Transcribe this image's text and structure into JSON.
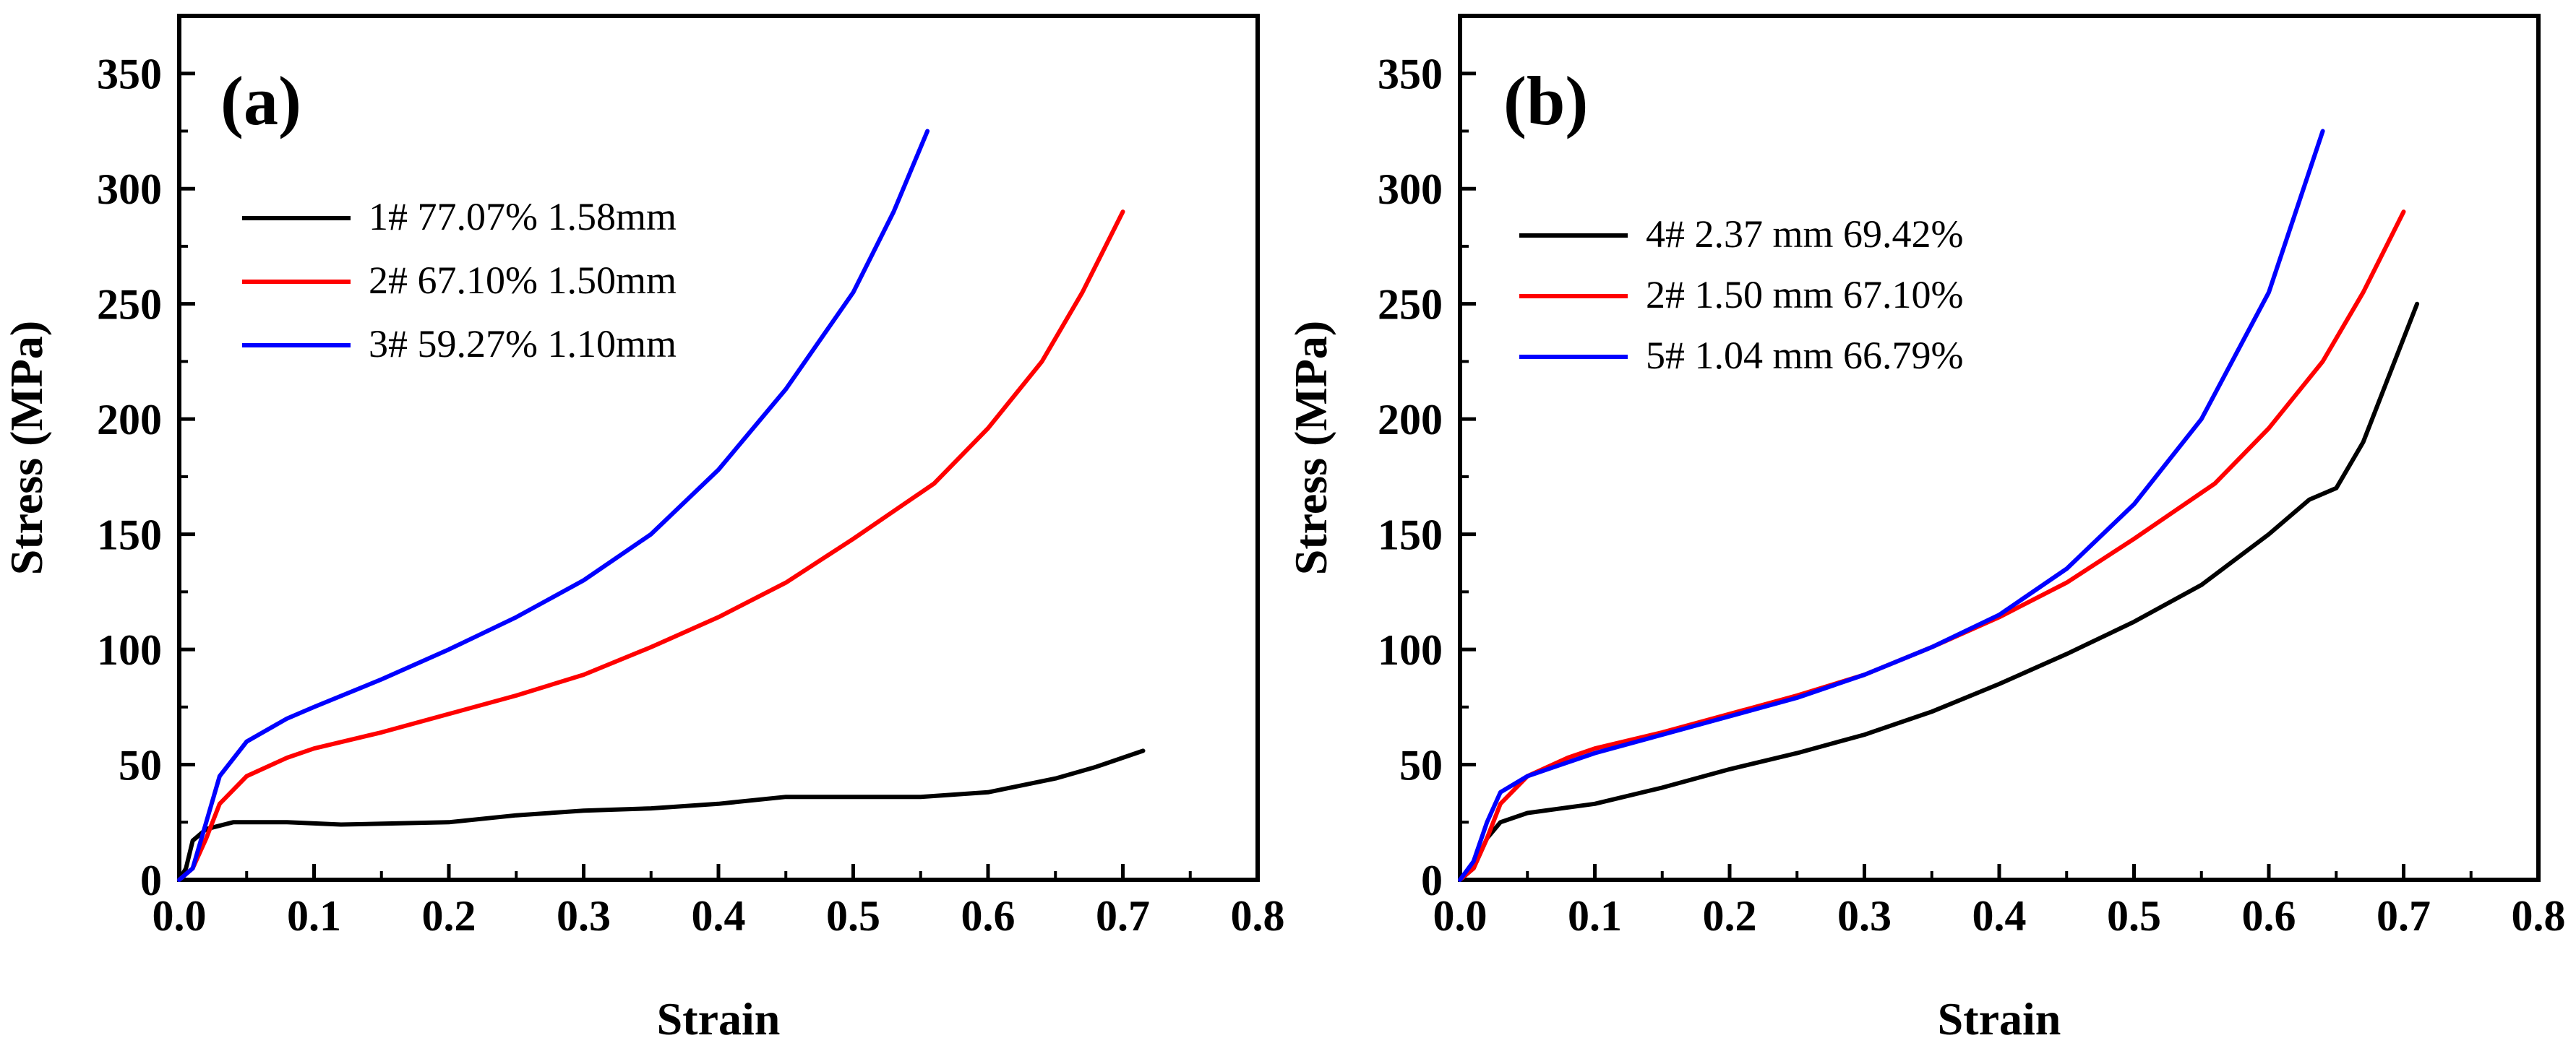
{
  "chart_data": [
    {
      "type": "line",
      "panel_label": "(a)",
      "xlabel": "Strain",
      "ylabel": "Stress (MPa)",
      "xlim": [
        0.0,
        0.8
      ],
      "ylim": [
        0,
        375
      ],
      "xticks": [
        "0.0",
        "0.1",
        "0.2",
        "0.3",
        "0.4",
        "0.5",
        "0.6",
        "0.7",
        "0.8"
      ],
      "yticks": [
        "0",
        "50",
        "100",
        "150",
        "200",
        "250",
        "300",
        "350"
      ],
      "grid": false,
      "legend_position": "upper-left",
      "series": [
        {
          "name": "1# 77.07% 1.58mm",
          "color": "#000000",
          "points": [
            [
              0,
              0
            ],
            [
              0.005,
              5
            ],
            [
              0.01,
              17
            ],
            [
              0.02,
              22
            ],
            [
              0.04,
              25
            ],
            [
              0.08,
              25
            ],
            [
              0.12,
              24
            ],
            [
              0.2,
              25
            ],
            [
              0.25,
              28
            ],
            [
              0.3,
              30
            ],
            [
              0.35,
              31
            ],
            [
              0.4,
              33
            ],
            [
              0.45,
              36
            ],
            [
              0.5,
              36
            ],
            [
              0.55,
              36
            ],
            [
              0.6,
              38
            ],
            [
              0.65,
              44
            ],
            [
              0.68,
              49
            ],
            [
              0.715,
              56
            ]
          ]
        },
        {
          "name": "2# 67.10% 1.50mm",
          "color": "#ff0000",
          "points": [
            [
              0,
              0
            ],
            [
              0.01,
              5
            ],
            [
              0.02,
              18
            ],
            [
              0.03,
              33
            ],
            [
              0.05,
              45
            ],
            [
              0.08,
              53
            ],
            [
              0.1,
              57
            ],
            [
              0.15,
              64
            ],
            [
              0.2,
              72
            ],
            [
              0.25,
              80
            ],
            [
              0.3,
              89
            ],
            [
              0.35,
              101
            ],
            [
              0.4,
              114
            ],
            [
              0.45,
              129
            ],
            [
              0.5,
              148
            ],
            [
              0.53,
              160
            ],
            [
              0.56,
              172
            ],
            [
              0.6,
              196
            ],
            [
              0.64,
              225
            ],
            [
              0.67,
              255
            ],
            [
              0.7,
              290
            ]
          ]
        },
        {
          "name": "3# 59.27% 1.10mm",
          "color": "#0000ff",
          "points": [
            [
              0,
              0
            ],
            [
              0.01,
              5
            ],
            [
              0.02,
              25
            ],
            [
              0.03,
              45
            ],
            [
              0.05,
              60
            ],
            [
              0.08,
              70
            ],
            [
              0.1,
              75
            ],
            [
              0.15,
              87
            ],
            [
              0.2,
              100
            ],
            [
              0.25,
              114
            ],
            [
              0.3,
              130
            ],
            [
              0.35,
              150
            ],
            [
              0.4,
              178
            ],
            [
              0.45,
              213
            ],
            [
              0.5,
              255
            ],
            [
              0.53,
              290
            ],
            [
              0.555,
              325
            ]
          ]
        }
      ]
    },
    {
      "type": "line",
      "panel_label": "(b)",
      "xlabel": "Strain",
      "ylabel": "Stress (MPa)",
      "xlim": [
        0.0,
        0.8
      ],
      "ylim": [
        0,
        375
      ],
      "xticks": [
        "0.0",
        "0.1",
        "0.2",
        "0.3",
        "0.4",
        "0.5",
        "0.6",
        "0.7",
        "0.8"
      ],
      "yticks": [
        "0",
        "50",
        "100",
        "150",
        "200",
        "250",
        "300",
        "350"
      ],
      "grid": false,
      "legend_position": "upper-left",
      "series": [
        {
          "name": "4# 2.37 mm 69.42%",
          "color": "#000000",
          "points": [
            [
              0,
              0
            ],
            [
              0.01,
              5
            ],
            [
              0.02,
              18
            ],
            [
              0.03,
              25
            ],
            [
              0.05,
              29
            ],
            [
              0.1,
              33
            ],
            [
              0.15,
              40
            ],
            [
              0.2,
              48
            ],
            [
              0.25,
              55
            ],
            [
              0.3,
              63
            ],
            [
              0.35,
              73
            ],
            [
              0.4,
              85
            ],
            [
              0.45,
              98
            ],
            [
              0.5,
              112
            ],
            [
              0.55,
              128
            ],
            [
              0.6,
              150
            ],
            [
              0.63,
              165
            ],
            [
              0.65,
              170
            ],
            [
              0.67,
              190
            ],
            [
              0.69,
              220
            ],
            [
              0.71,
              250
            ]
          ]
        },
        {
          "name": "2# 1.50 mm 67.10%",
          "color": "#ff0000",
          "points": [
            [
              0,
              0
            ],
            [
              0.01,
              5
            ],
            [
              0.02,
              18
            ],
            [
              0.03,
              33
            ],
            [
              0.05,
              45
            ],
            [
              0.08,
              53
            ],
            [
              0.1,
              57
            ],
            [
              0.15,
              64
            ],
            [
              0.2,
              72
            ],
            [
              0.25,
              80
            ],
            [
              0.3,
              89
            ],
            [
              0.35,
              101
            ],
            [
              0.4,
              114
            ],
            [
              0.45,
              129
            ],
            [
              0.5,
              148
            ],
            [
              0.53,
              160
            ],
            [
              0.56,
              172
            ],
            [
              0.6,
              196
            ],
            [
              0.64,
              225
            ],
            [
              0.67,
              255
            ],
            [
              0.7,
              290
            ]
          ]
        },
        {
          "name": "5# 1.04 mm 66.79%",
          "color": "#0000ff",
          "points": [
            [
              0,
              0
            ],
            [
              0.01,
              8
            ],
            [
              0.02,
              25
            ],
            [
              0.03,
              38
            ],
            [
              0.05,
              45
            ],
            [
              0.1,
              55
            ],
            [
              0.15,
              63
            ],
            [
              0.2,
              71
            ],
            [
              0.25,
              79
            ],
            [
              0.3,
              89
            ],
            [
              0.35,
              101
            ],
            [
              0.4,
              115
            ],
            [
              0.45,
              135
            ],
            [
              0.5,
              163
            ],
            [
              0.55,
              200
            ],
            [
              0.6,
              255
            ],
            [
              0.64,
              325
            ]
          ]
        }
      ]
    }
  ]
}
